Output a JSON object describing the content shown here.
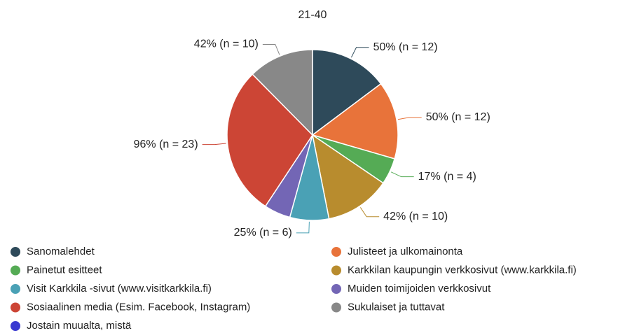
{
  "chart_data": {
    "type": "pie",
    "title": "21-40",
    "categories": [
      "Sanomalehdet",
      "Julisteet ja ulkomainonta",
      "Painetut esitteet",
      "Karkkilan kaupungin verkkosivut (www.karkkila.fi)",
      "Visit Karkkila -sivut (www.visitkarkkila.fi)",
      "Muiden toimijoiden verkkosivut",
      "Sosiaalinen media (Esim. Facebook, Instagram)",
      "Sukulaiset ja tuttavat",
      "Jostain muualta, mistä"
    ],
    "values": [
      50,
      50,
      17,
      42,
      25,
      17,
      96,
      42,
      0
    ],
    "value_labels": [
      "50% (n = 12)",
      "50% (n = 12)",
      "17% (n = 4)",
      "42% (n = 10)",
      "25% (n = 6)",
      null,
      "96% (n = 23)",
      "42% (n = 10)",
      null
    ],
    "colors": [
      "#2e4a5a",
      "#e8733a",
      "#55ab55",
      "#b88c2e",
      "#4aa1b5",
      "#7366b5",
      "#cc4535",
      "#888888",
      "#3a3ad0"
    ],
    "legend": "bottom"
  }
}
